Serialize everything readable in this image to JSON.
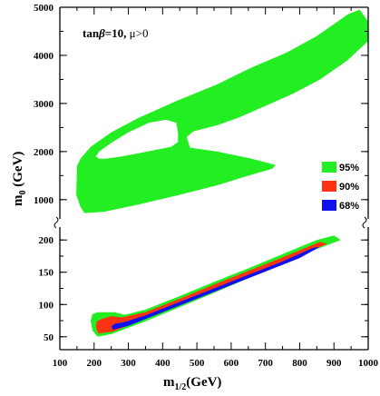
{
  "chart_data": {
    "type": "contour",
    "annotation": {
      "prefix": "tan",
      "beta": "β",
      "suffix": "=10, ",
      "mu": "μ",
      "cond": ">0"
    },
    "xlabel": {
      "main": "m",
      "sub": "1/2",
      "unit": "(GeV)"
    },
    "ylabel": {
      "main": "m",
      "sub": "0",
      "unit": " (GeV)"
    },
    "xlim": [
      100,
      1000
    ],
    "x_ticks": [
      "100",
      "200",
      "300",
      "400",
      "500",
      "600",
      "700",
      "800",
      "900",
      "1000"
    ],
    "upper_panel": {
      "ylim": [
        600,
        5000
      ],
      "y_ticks": [
        "1000",
        "2000",
        "3000",
        "4000",
        "5000"
      ]
    },
    "lower_panel": {
      "ylim": [
        30,
        220
      ],
      "y_ticks": [
        "50",
        "100",
        "150",
        "200"
      ]
    },
    "broken_axis": true,
    "legend": [
      {
        "label": "95%",
        "color": "#22ee22"
      },
      {
        "label": "90%",
        "color": "#ff3311"
      },
      {
        "label": "68%",
        "color": "#1111ee"
      }
    ],
    "legend_position": "right",
    "regions": {
      "upper_95": [
        [
          150,
          1700
        ],
        [
          148,
          1100
        ],
        [
          160,
          850
        ],
        [
          172,
          720
        ],
        [
          230,
          750
        ],
        [
          330,
          900
        ],
        [
          450,
          1100
        ],
        [
          560,
          1300
        ],
        [
          660,
          1520
        ],
        [
          720,
          1640
        ],
        [
          730,
          1720
        ],
        [
          660,
          1850
        ],
        [
          560,
          2000
        ],
        [
          480,
          2080
        ],
        [
          470,
          2300
        ],
        [
          490,
          2420
        ],
        [
          560,
          2550
        ],
        [
          620,
          2700
        ],
        [
          700,
          2950
        ],
        [
          780,
          3200
        ],
        [
          860,
          3500
        ],
        [
          940,
          3900
        ],
        [
          1000,
          4300
        ],
        [
          1000,
          4700
        ],
        [
          975,
          4950
        ],
        [
          940,
          4850
        ],
        [
          850,
          4400
        ],
        [
          760,
          4050
        ],
        [
          660,
          3750
        ],
        [
          560,
          3400
        ],
        [
          440,
          3050
        ],
        [
          330,
          2700
        ],
        [
          250,
          2400
        ],
        [
          190,
          2100
        ],
        [
          160,
          1850
        ]
      ],
      "upper_hole": [
        [
          215,
          1850
        ],
        [
          235,
          1850
        ],
        [
          280,
          1900
        ],
        [
          320,
          1950
        ],
        [
          370,
          2020
        ],
        [
          425,
          2100
        ],
        [
          445,
          2200
        ],
        [
          445,
          2380
        ],
        [
          440,
          2600
        ],
        [
          410,
          2660
        ],
        [
          360,
          2600
        ],
        [
          300,
          2400
        ],
        [
          250,
          2180
        ],
        [
          215,
          2000
        ],
        [
          205,
          1900
        ]
      ],
      "lower_95": [
        [
          210,
          88
        ],
        [
          195,
          85
        ],
        [
          190,
          75
        ],
        [
          195,
          60
        ],
        [
          210,
          50
        ],
        [
          250,
          54
        ],
        [
          350,
          74
        ],
        [
          450,
          96
        ],
        [
          550,
          118
        ],
        [
          650,
          141
        ],
        [
          750,
          164
        ],
        [
          850,
          186
        ],
        [
          920,
          200
        ],
        [
          900,
          207
        ],
        [
          850,
          200
        ],
        [
          750,
          178
        ],
        [
          650,
          156
        ],
        [
          550,
          135
        ],
        [
          450,
          113
        ],
        [
          350,
          92
        ],
        [
          290,
          84
        ],
        [
          260,
          88
        ]
      ],
      "lower_90": [
        [
          225,
          78
        ],
        [
          208,
          74
        ],
        [
          205,
          65
        ],
        [
          212,
          55
        ],
        [
          255,
          58
        ],
        [
          350,
          78
        ],
        [
          450,
          99
        ],
        [
          550,
          121
        ],
        [
          650,
          143
        ],
        [
          750,
          165
        ],
        [
          880,
          194
        ],
        [
          860,
          197
        ],
        [
          750,
          173
        ],
        [
          650,
          152
        ],
        [
          550,
          131
        ],
        [
          450,
          109
        ],
        [
          350,
          88
        ],
        [
          280,
          80
        ],
        [
          250,
          82
        ]
      ],
      "lower_68": [
        [
          260,
          70
        ],
        [
          250,
          66
        ],
        [
          255,
          61
        ],
        [
          300,
          67
        ],
        [
          400,
          88
        ],
        [
          500,
          109
        ],
        [
          600,
          130
        ],
        [
          700,
          151
        ],
        [
          800,
          172
        ],
        [
          858,
          189
        ],
        [
          840,
          188
        ],
        [
          750,
          167
        ],
        [
          650,
          146
        ],
        [
          550,
          125
        ],
        [
          450,
          104
        ],
        [
          350,
          83
        ],
        [
          290,
          73
        ]
      ]
    }
  }
}
